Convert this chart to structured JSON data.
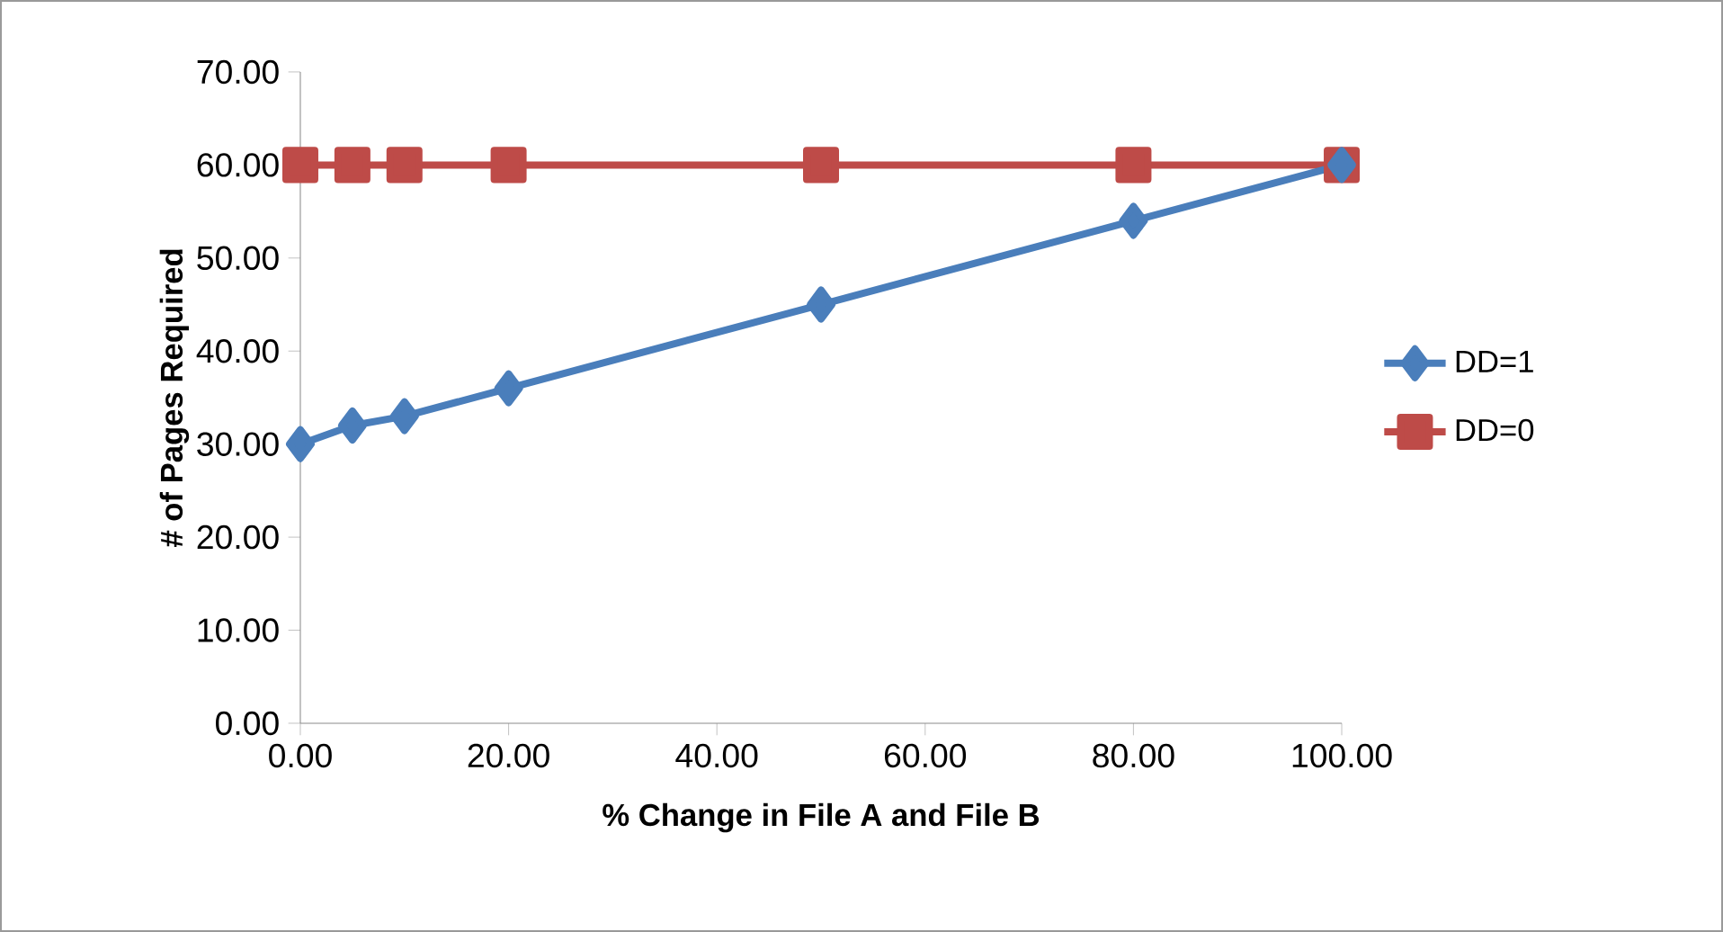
{
  "chart_data": {
    "type": "line",
    "xlabel": "% Change in File A and File B",
    "ylabel": "# of Pages Required",
    "xlim": [
      0,
      100
    ],
    "ylim": [
      0,
      70
    ],
    "xticks": [
      {
        "value": 0,
        "label": "0.00"
      },
      {
        "value": 20,
        "label": "20.00"
      },
      {
        "value": 40,
        "label": "40.00"
      },
      {
        "value": 60,
        "label": "60.00"
      },
      {
        "value": 80,
        "label": "80.00"
      },
      {
        "value": 100,
        "label": "100.00"
      }
    ],
    "yticks": [
      {
        "value": 0,
        "label": "0.00"
      },
      {
        "value": 10,
        "label": "10.00"
      },
      {
        "value": 20,
        "label": "20.00"
      },
      {
        "value": 30,
        "label": "30.00"
      },
      {
        "value": 40,
        "label": "40.00"
      },
      {
        "value": 50,
        "label": "50.00"
      },
      {
        "value": 60,
        "label": "60.00"
      },
      {
        "value": 70,
        "label": "70.00"
      }
    ],
    "grid": false,
    "legend": "right",
    "line_style": "solid",
    "x": [
      0,
      5,
      10,
      20,
      50,
      80,
      100
    ],
    "series": [
      {
        "name": "DD=1",
        "color": "#4a7ebb",
        "marker": "diamond",
        "values": [
          30,
          32,
          33,
          36,
          45,
          54,
          60
        ]
      },
      {
        "name": "DD=0",
        "color": "#be4b48",
        "marker": "square",
        "values": [
          60,
          60,
          60,
          60,
          60,
          60,
          60
        ]
      }
    ]
  }
}
